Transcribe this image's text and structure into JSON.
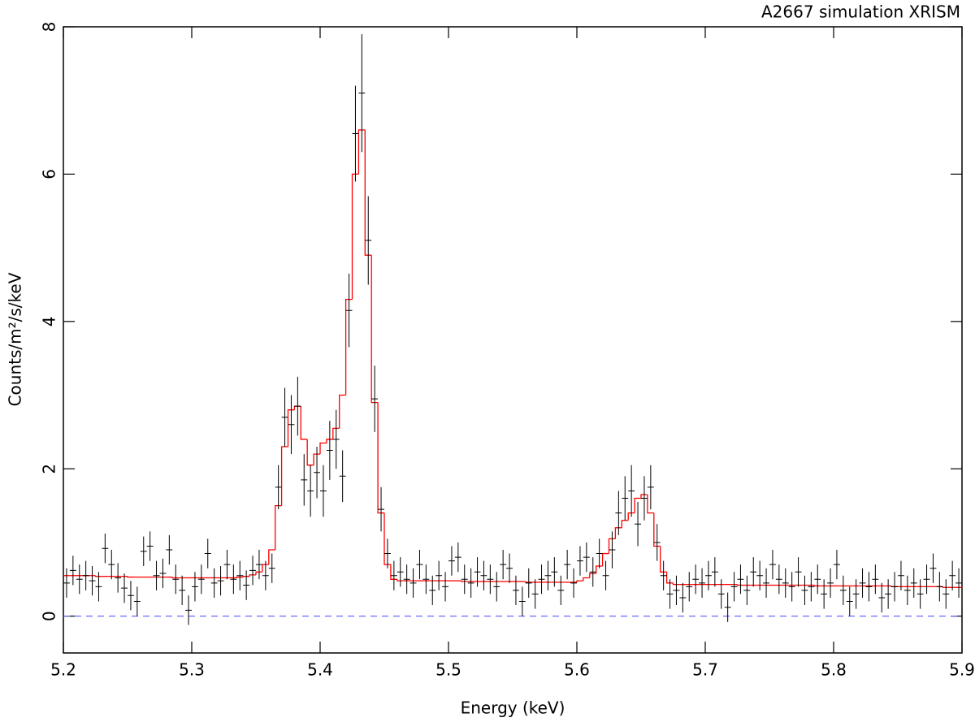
{
  "chart_data": {
    "type": "spectrum",
    "title": "A2667 simulation XRISM",
    "xlabel": "Energy (keV)",
    "ylabel": "Counts/m²/s/keV",
    "xlim": [
      5.2,
      5.9
    ],
    "ylim": [
      -0.5,
      8
    ],
    "xticks": [
      5.2,
      5.3,
      5.4,
      5.5,
      5.6,
      5.7,
      5.8,
      5.9
    ],
    "yticks": [
      0,
      2,
      4,
      6,
      8
    ],
    "reference_line": {
      "y": 0,
      "color": "#6a6aff",
      "style": "dashed"
    },
    "series": [
      {
        "color": "#000000",
        "xerr": 0.0025,
        "x": [
          5.2025,
          5.2075,
          5.2125,
          5.2175,
          5.2225,
          5.2275,
          5.2325,
          5.2375,
          5.2425,
          5.2475,
          5.2525,
          5.2575,
          5.2625,
          5.2675,
          5.2725,
          5.2775,
          5.2825,
          5.2875,
          5.2925,
          5.2975,
          5.3025,
          5.3075,
          5.3125,
          5.3175,
          5.3225,
          5.3275,
          5.3325,
          5.3375,
          5.3425,
          5.3475,
          5.3525,
          5.3575,
          5.3625,
          5.3675,
          5.3725,
          5.3775,
          5.3825,
          5.3875,
          5.3925,
          5.3975,
          5.4025,
          5.4075,
          5.4125,
          5.4175,
          5.4225,
          5.4275,
          5.4325,
          5.4375,
          5.4425,
          5.4475,
          5.4525,
          5.4575,
          5.4625,
          5.4675,
          5.4725,
          5.4775,
          5.4825,
          5.4875,
          5.4925,
          5.4975,
          5.5025,
          5.5075,
          5.5125,
          5.5175,
          5.5225,
          5.5275,
          5.5325,
          5.5375,
          5.5425,
          5.5475,
          5.5525,
          5.5575,
          5.5625,
          5.5675,
          5.5725,
          5.5775,
          5.5825,
          5.5875,
          5.5925,
          5.5975,
          5.6025,
          5.6075,
          5.6125,
          5.6175,
          5.6225,
          5.6275,
          5.6325,
          5.6375,
          5.6425,
          5.6475,
          5.6525,
          5.6575,
          5.6625,
          5.6675,
          5.6725,
          5.6775,
          5.6825,
          5.6875,
          5.6925,
          5.6975,
          5.7025,
          5.7075,
          5.7125,
          5.7175,
          5.7225,
          5.7275,
          5.7325,
          5.7375,
          5.7425,
          5.7475,
          5.7525,
          5.7575,
          5.7625,
          5.7675,
          5.7725,
          5.7775,
          5.7825,
          5.7875,
          5.7925,
          5.7975,
          5.8025,
          5.8075,
          5.8125,
          5.8175,
          5.8225,
          5.8275,
          5.8325,
          5.8375,
          5.8425,
          5.8475,
          5.8525,
          5.8575,
          5.8625,
          5.8675,
          5.8725,
          5.8775,
          5.8825,
          5.8875,
          5.8925,
          5.8975
        ],
        "values": [
          0.45,
          0.62,
          0.5,
          0.55,
          0.48,
          0.4,
          0.92,
          0.7,
          0.52,
          0.38,
          0.28,
          0.2,
          0.88,
          0.95,
          0.55,
          0.58,
          0.9,
          0.5,
          0.35,
          0.08,
          0.4,
          0.5,
          0.85,
          0.45,
          0.48,
          0.7,
          0.5,
          0.55,
          0.42,
          0.62,
          0.7,
          0.55,
          0.65,
          1.75,
          2.7,
          2.6,
          2.85,
          1.85,
          1.7,
          1.95,
          1.7,
          2.25,
          2.4,
          1.9,
          4.15,
          6.55,
          7.1,
          5.1,
          2.95,
          1.45,
          0.85,
          0.55,
          0.6,
          0.5,
          0.45,
          0.7,
          0.5,
          0.35,
          0.55,
          0.4,
          0.75,
          0.8,
          0.5,
          0.45,
          0.6,
          0.55,
          0.5,
          0.4,
          0.7,
          0.65,
          0.35,
          0.2,
          0.45,
          0.3,
          0.5,
          0.55,
          0.6,
          0.35,
          0.7,
          0.45,
          0.75,
          0.8,
          0.6,
          0.85,
          0.55,
          0.9,
          1.4,
          1.6,
          1.7,
          1.25,
          1.6,
          1.75,
          1.0,
          0.55,
          0.3,
          0.35,
          0.25,
          0.4,
          0.5,
          0.45,
          0.55,
          0.6,
          0.3,
          0.12,
          0.4,
          0.5,
          0.35,
          0.6,
          0.55,
          0.45,
          0.7,
          0.5,
          0.45,
          0.4,
          0.6,
          0.35,
          0.4,
          0.5,
          0.3,
          0.45,
          0.7,
          0.35,
          0.2,
          0.3,
          0.45,
          0.4,
          0.5,
          0.25,
          0.3,
          0.4,
          0.55,
          0.35,
          0.45,
          0.3,
          0.5,
          0.65,
          0.4,
          0.3,
          0.55,
          0.45
        ],
        "errors": [
          0.2,
          0.2,
          0.2,
          0.2,
          0.2,
          0.2,
          0.2,
          0.2,
          0.2,
          0.2,
          0.2,
          0.2,
          0.2,
          0.2,
          0.2,
          0.2,
          0.2,
          0.2,
          0.2,
          0.2,
          0.2,
          0.2,
          0.2,
          0.2,
          0.2,
          0.2,
          0.2,
          0.2,
          0.2,
          0.2,
          0.2,
          0.2,
          0.2,
          0.3,
          0.4,
          0.4,
          0.4,
          0.35,
          0.35,
          0.35,
          0.35,
          0.4,
          0.4,
          0.35,
          0.5,
          0.65,
          0.8,
          0.6,
          0.45,
          0.3,
          0.2,
          0.2,
          0.2,
          0.2,
          0.2,
          0.2,
          0.2,
          0.2,
          0.2,
          0.2,
          0.2,
          0.2,
          0.2,
          0.2,
          0.2,
          0.2,
          0.2,
          0.2,
          0.2,
          0.2,
          0.2,
          0.2,
          0.2,
          0.2,
          0.2,
          0.2,
          0.2,
          0.2,
          0.2,
          0.2,
          0.2,
          0.2,
          0.2,
          0.2,
          0.2,
          0.25,
          0.3,
          0.3,
          0.35,
          0.3,
          0.3,
          0.3,
          0.25,
          0.2,
          0.2,
          0.2,
          0.2,
          0.2,
          0.2,
          0.2,
          0.2,
          0.2,
          0.2,
          0.2,
          0.2,
          0.2,
          0.2,
          0.2,
          0.2,
          0.2,
          0.2,
          0.2,
          0.2,
          0.2,
          0.2,
          0.2,
          0.2,
          0.2,
          0.2,
          0.2,
          0.2,
          0.2,
          0.2,
          0.2,
          0.2,
          0.2,
          0.2,
          0.2,
          0.2,
          0.2,
          0.2,
          0.2,
          0.2,
          0.2,
          0.2,
          0.2,
          0.2,
          0.2,
          0.2,
          0.2
        ]
      },
      {
        "color": "#ff0000",
        "values": [
          0.55,
          0.55,
          0.55,
          0.55,
          0.55,
          0.54,
          0.54,
          0.54,
          0.54,
          0.54,
          0.53,
          0.53,
          0.53,
          0.53,
          0.53,
          0.53,
          0.53,
          0.52,
          0.52,
          0.52,
          0.52,
          0.52,
          0.52,
          0.52,
          0.52,
          0.52,
          0.52,
          0.53,
          0.54,
          0.56,
          0.6,
          0.7,
          0.9,
          1.5,
          2.3,
          2.8,
          2.85,
          2.4,
          2.05,
          2.2,
          2.35,
          2.4,
          2.55,
          3.0,
          4.3,
          6.0,
          6.6,
          4.9,
          2.9,
          1.4,
          0.7,
          0.5,
          0.48,
          0.48,
          0.48,
          0.48,
          0.48,
          0.48,
          0.48,
          0.48,
          0.48,
          0.48,
          0.47,
          0.47,
          0.47,
          0.47,
          0.47,
          0.47,
          0.47,
          0.47,
          0.47,
          0.47,
          0.46,
          0.46,
          0.46,
          0.46,
          0.46,
          0.46,
          0.46,
          0.46,
          0.48,
          0.52,
          0.58,
          0.68,
          0.85,
          1.05,
          1.2,
          1.3,
          1.4,
          1.6,
          1.65,
          1.4,
          0.95,
          0.6,
          0.45,
          0.43,
          0.43,
          0.43,
          0.43,
          0.43,
          0.43,
          0.43,
          0.43,
          0.43,
          0.43,
          0.42,
          0.42,
          0.42,
          0.42,
          0.42,
          0.42,
          0.42,
          0.42,
          0.42,
          0.42,
          0.42,
          0.42,
          0.41,
          0.41,
          0.41,
          0.41,
          0.41,
          0.41,
          0.41,
          0.41,
          0.41,
          0.41,
          0.41,
          0.41,
          0.4,
          0.4,
          0.4,
          0.4,
          0.4,
          0.4,
          0.4,
          0.4,
          0.39,
          0.39,
          0.39
        ]
      }
    ]
  }
}
